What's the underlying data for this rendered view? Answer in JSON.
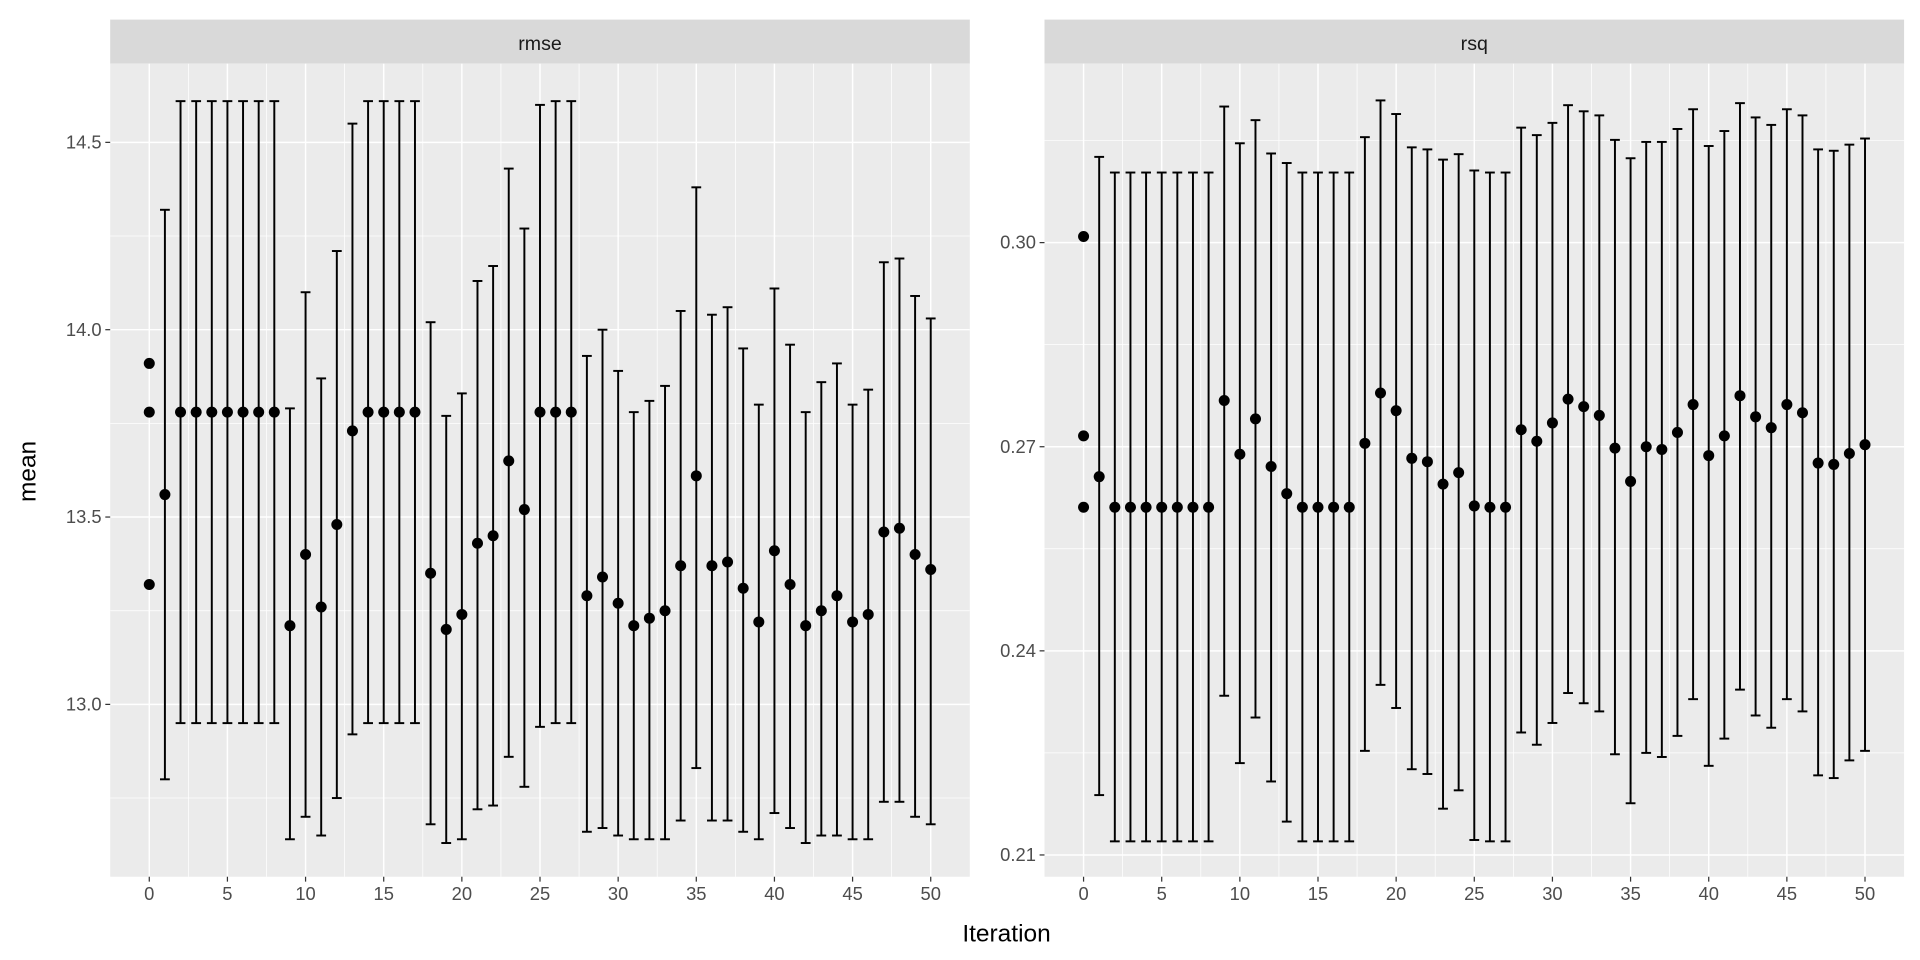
{
  "chart_data": {
    "type": "scatter",
    "xlabel": "Iteration",
    "ylabel": "mean",
    "grid": true,
    "panels": [
      {
        "title": "rmse",
        "ylim": [
          12.54,
          14.71
        ],
        "xlim": [
          -2.5,
          52.5
        ],
        "xticks": [
          0,
          5,
          10,
          15,
          20,
          25,
          30,
          35,
          40,
          45,
          50
        ],
        "yticks": [
          13.0,
          13.5,
          14.0,
          14.5
        ],
        "ytick_labels": [
          "13.0",
          "13.5",
          "14.0",
          "14.5"
        ],
        "yminor": [
          12.75,
          13.25,
          13.75,
          14.25
        ],
        "points": [
          [
            0,
            13.91,
            null,
            null
          ],
          [
            0,
            13.78,
            null,
            null
          ],
          [
            0,
            13.32,
            null,
            null
          ],
          [
            1,
            13.56,
            12.8,
            14.32
          ],
          [
            2,
            13.78,
            12.95,
            14.61
          ],
          [
            3,
            13.78,
            12.95,
            14.61
          ],
          [
            4,
            13.78,
            12.95,
            14.61
          ],
          [
            5,
            13.78,
            12.95,
            14.61
          ],
          [
            6,
            13.78,
            12.95,
            14.61
          ],
          [
            7,
            13.78,
            12.95,
            14.61
          ],
          [
            8,
            13.78,
            12.95,
            14.61
          ],
          [
            9,
            13.21,
            12.64,
            13.79
          ],
          [
            10,
            13.4,
            12.7,
            14.1
          ],
          [
            11,
            13.26,
            12.65,
            13.87
          ],
          [
            12,
            13.48,
            12.75,
            14.21
          ],
          [
            13,
            13.73,
            12.92,
            14.55
          ],
          [
            14,
            13.78,
            12.95,
            14.61
          ],
          [
            15,
            13.78,
            12.95,
            14.61
          ],
          [
            16,
            13.78,
            12.95,
            14.61
          ],
          [
            17,
            13.78,
            12.95,
            14.61
          ],
          [
            18,
            13.35,
            12.68,
            14.02
          ],
          [
            19,
            13.2,
            12.63,
            13.77
          ],
          [
            20,
            13.24,
            12.64,
            13.83
          ],
          [
            21,
            13.43,
            12.72,
            14.13
          ],
          [
            22,
            13.45,
            12.73,
            14.17
          ],
          [
            23,
            13.65,
            12.86,
            14.43
          ],
          [
            24,
            13.52,
            12.78,
            14.27
          ],
          [
            25,
            13.78,
            12.94,
            14.6
          ],
          [
            26,
            13.78,
            12.95,
            14.61
          ],
          [
            27,
            13.78,
            12.95,
            14.61
          ],
          [
            28,
            13.29,
            12.66,
            13.93
          ],
          [
            29,
            13.34,
            12.67,
            14.0
          ],
          [
            30,
            13.27,
            12.65,
            13.89
          ],
          [
            31,
            13.21,
            12.64,
            13.78
          ],
          [
            32,
            13.23,
            12.64,
            13.81
          ],
          [
            33,
            13.25,
            12.64,
            13.85
          ],
          [
            34,
            13.37,
            12.69,
            14.05
          ],
          [
            35,
            13.61,
            12.83,
            14.38
          ],
          [
            36,
            13.37,
            12.69,
            14.04
          ],
          [
            37,
            13.38,
            12.69,
            14.06
          ],
          [
            38,
            13.31,
            12.66,
            13.95
          ],
          [
            39,
            13.22,
            12.64,
            13.8
          ],
          [
            40,
            13.41,
            12.71,
            14.11
          ],
          [
            41,
            13.32,
            12.67,
            13.96
          ],
          [
            42,
            13.21,
            12.63,
            13.78
          ],
          [
            43,
            13.25,
            12.65,
            13.86
          ],
          [
            44,
            13.29,
            12.65,
            13.91
          ],
          [
            45,
            13.22,
            12.64,
            13.8
          ],
          [
            46,
            13.24,
            12.64,
            13.84
          ],
          [
            47,
            13.46,
            12.74,
            14.18
          ],
          [
            48,
            13.47,
            12.74,
            14.19
          ],
          [
            49,
            13.4,
            12.7,
            14.09
          ],
          [
            50,
            13.36,
            12.68,
            14.03
          ]
        ]
      },
      {
        "title": "rsq",
        "ylim": [
          0.2068,
          0.3263
        ],
        "xlim": [
          -2.5,
          52.5
        ],
        "xticks": [
          0,
          5,
          10,
          15,
          20,
          25,
          30,
          35,
          40,
          45,
          50
        ],
        "yticks": [
          0.21,
          0.24,
          0.27,
          0.3
        ],
        "ytick_labels": [
          "0.21",
          "0.24",
          "0.27",
          "0.30"
        ],
        "yminor": [
          0.225,
          0.255,
          0.285,
          0.315
        ],
        "points": [
          [
            0,
            0.3009,
            null,
            null
          ],
          [
            0,
            0.2716,
            null,
            null
          ],
          [
            0,
            0.2611,
            null,
            null
          ],
          [
            1,
            0.2656,
            0.2188,
            0.3126
          ],
          [
            2,
            0.2611,
            0.212,
            0.3103
          ],
          [
            3,
            0.2611,
            0.212,
            0.3103
          ],
          [
            4,
            0.2611,
            0.212,
            0.3103
          ],
          [
            5,
            0.2611,
            0.212,
            0.3103
          ],
          [
            6,
            0.2611,
            0.212,
            0.3103
          ],
          [
            7,
            0.2611,
            0.212,
            0.3103
          ],
          [
            8,
            0.2611,
            0.212,
            0.3103
          ],
          [
            9,
            0.2768,
            0.2334,
            0.32
          ],
          [
            10,
            0.2689,
            0.2235,
            0.3146
          ],
          [
            11,
            0.2741,
            0.2302,
            0.318
          ],
          [
            12,
            0.2671,
            0.2208,
            0.3131
          ],
          [
            13,
            0.2631,
            0.2149,
            0.3117
          ],
          [
            14,
            0.2611,
            0.212,
            0.3103
          ],
          [
            15,
            0.2611,
            0.212,
            0.3103
          ],
          [
            16,
            0.2611,
            0.212,
            0.3103
          ],
          [
            17,
            0.2611,
            0.212,
            0.3103
          ],
          [
            18,
            0.2705,
            0.2253,
            0.3155
          ],
          [
            19,
            0.2779,
            0.235,
            0.3209
          ],
          [
            20,
            0.2753,
            0.2316,
            0.3189
          ],
          [
            21,
            0.2683,
            0.2226,
            0.314
          ],
          [
            22,
            0.2678,
            0.2219,
            0.3137
          ],
          [
            23,
            0.2645,
            0.2168,
            0.3122
          ],
          [
            24,
            0.2662,
            0.2195,
            0.313
          ],
          [
            25,
            0.2613,
            0.2122,
            0.3106
          ],
          [
            26,
            0.2611,
            0.212,
            0.3103
          ],
          [
            27,
            0.2611,
            0.212,
            0.3103
          ],
          [
            28,
            0.2725,
            0.228,
            0.3169
          ],
          [
            29,
            0.2708,
            0.2262,
            0.3158
          ],
          [
            30,
            0.2735,
            0.2294,
            0.3176
          ],
          [
            31,
            0.277,
            0.2338,
            0.3202
          ],
          [
            32,
            0.2759,
            0.2323,
            0.3193
          ],
          [
            33,
            0.2746,
            0.2311,
            0.3187
          ],
          [
            34,
            0.2698,
            0.2248,
            0.3151
          ],
          [
            35,
            0.2649,
            0.2176,
            0.3124
          ],
          [
            36,
            0.27,
            0.225,
            0.3148
          ],
          [
            37,
            0.2696,
            0.2244,
            0.3148
          ],
          [
            38,
            0.2721,
            0.2275,
            0.3167
          ],
          [
            39,
            0.2762,
            0.2329,
            0.3196
          ],
          [
            40,
            0.2687,
            0.2231,
            0.3142
          ],
          [
            41,
            0.2716,
            0.2271,
            0.3164
          ],
          [
            42,
            0.2775,
            0.2343,
            0.3205
          ],
          [
            43,
            0.2744,
            0.2305,
            0.3184
          ],
          [
            44,
            0.2728,
            0.2287,
            0.3173
          ],
          [
            45,
            0.2762,
            0.2329,
            0.3196
          ],
          [
            46,
            0.275,
            0.2311,
            0.3187
          ],
          [
            47,
            0.2676,
            0.2217,
            0.3137
          ],
          [
            48,
            0.2674,
            0.2213,
            0.3135
          ],
          [
            49,
            0.269,
            0.2239,
            0.3144
          ],
          [
            50,
            0.2703,
            0.2253,
            0.3153
          ]
        ]
      }
    ],
    "colors": {
      "panel_bg": "#EBEBEB",
      "strip_bg": "#D9D9D9",
      "grid": "#FFFFFF",
      "point": "#000000",
      "tick_text": "#4D4D4D"
    }
  }
}
